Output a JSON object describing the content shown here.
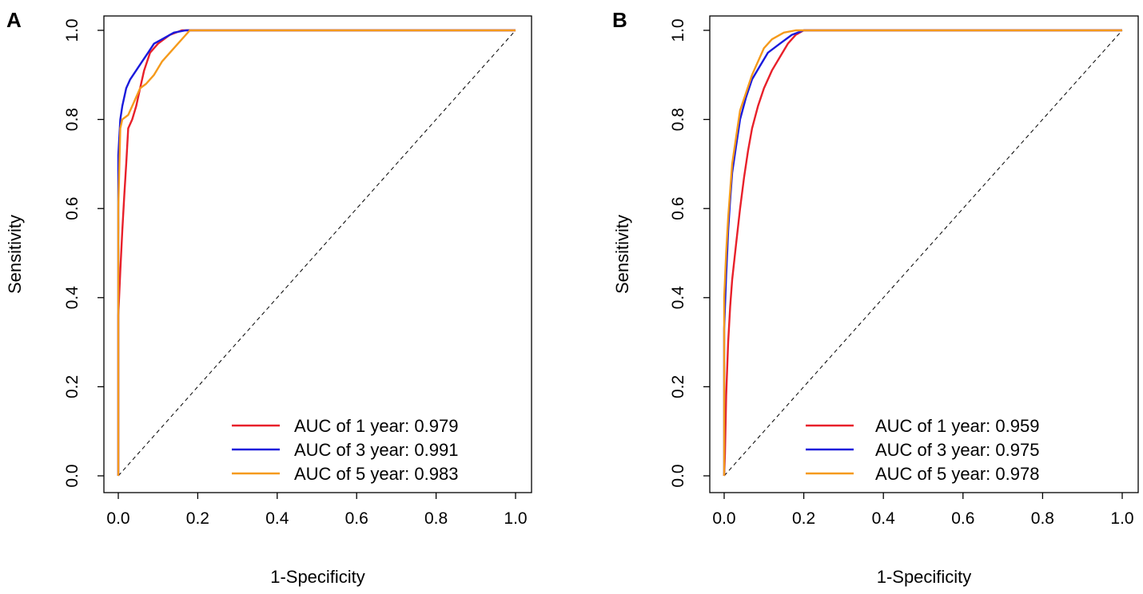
{
  "figure": {
    "panels": [
      "A",
      "B"
    ]
  },
  "colors": {
    "year1": "#e8202a",
    "year3": "#1a1adc",
    "year5": "#f59a1b",
    "diagonal": "#000000",
    "axis": "#000000"
  },
  "chart_data": [
    {
      "panel_label": "A",
      "type": "line",
      "xlabel": "1-Specificity",
      "ylabel": "Sensitivity",
      "xlim": [
        0,
        1
      ],
      "ylim": [
        0,
        1
      ],
      "xticks": [
        "0.0",
        "0.2",
        "0.4",
        "0.6",
        "0.8",
        "1.0"
      ],
      "yticks": [
        "0.0",
        "0.2",
        "0.4",
        "0.6",
        "0.8",
        "1.0"
      ],
      "reference_line": "diagonal",
      "legend_position": "bottom-right",
      "series": [
        {
          "name": "AUC of 1 year: 0.979",
          "color": "#e8202a",
          "points": [
            [
              0,
              0
            ],
            [
              0,
              0.36
            ],
            [
              0.005,
              0.46
            ],
            [
              0.01,
              0.55
            ],
            [
              0.015,
              0.63
            ],
            [
              0.02,
              0.7
            ],
            [
              0.025,
              0.78
            ],
            [
              0.035,
              0.8
            ],
            [
              0.045,
              0.83
            ],
            [
              0.055,
              0.87
            ],
            [
              0.065,
              0.91
            ],
            [
              0.08,
              0.95
            ],
            [
              0.1,
              0.97
            ],
            [
              0.13,
              0.99
            ],
            [
              0.16,
              1
            ],
            [
              1,
              1
            ]
          ]
        },
        {
          "name": "AUC of 3 year: 0.991",
          "color": "#1a1adc",
          "points": [
            [
              0,
              0
            ],
            [
              0,
              0.72
            ],
            [
              0.005,
              0.8
            ],
            [
              0.01,
              0.83
            ],
            [
              0.02,
              0.87
            ],
            [
              0.03,
              0.89
            ],
            [
              0.045,
              0.91
            ],
            [
              0.06,
              0.93
            ],
            [
              0.075,
              0.95
            ],
            [
              0.09,
              0.97
            ],
            [
              0.11,
              0.98
            ],
            [
              0.14,
              0.995
            ],
            [
              0.17,
              1
            ],
            [
              1,
              1
            ]
          ]
        },
        {
          "name": "AUC of 5 year: 0.983",
          "color": "#f59a1b",
          "points": [
            [
              0,
              0
            ],
            [
              0,
              0.6
            ],
            [
              0.005,
              0.78
            ],
            [
              0.01,
              0.8
            ],
            [
              0.025,
              0.81
            ],
            [
              0.04,
              0.84
            ],
            [
              0.055,
              0.87
            ],
            [
              0.07,
              0.88
            ],
            [
              0.09,
              0.9
            ],
            [
              0.11,
              0.93
            ],
            [
              0.13,
              0.95
            ],
            [
              0.15,
              0.97
            ],
            [
              0.18,
              1
            ],
            [
              1,
              1
            ]
          ]
        }
      ]
    },
    {
      "panel_label": "B",
      "type": "line",
      "xlabel": "1-Specificity",
      "ylabel": "Sensitivity",
      "xlim": [
        0,
        1
      ],
      "ylim": [
        0,
        1
      ],
      "xticks": [
        "0.0",
        "0.2",
        "0.4",
        "0.6",
        "0.8",
        "1.0"
      ],
      "yticks": [
        "0.0",
        "0.2",
        "0.4",
        "0.6",
        "0.8",
        "1.0"
      ],
      "reference_line": "diagonal",
      "legend_position": "bottom-right",
      "series": [
        {
          "name": "AUC of 1 year: 0.959",
          "color": "#e8202a",
          "points": [
            [
              0,
              0
            ],
            [
              0.002,
              0.05
            ],
            [
              0.005,
              0.18
            ],
            [
              0.01,
              0.3
            ],
            [
              0.015,
              0.38
            ],
            [
              0.02,
              0.44
            ],
            [
              0.03,
              0.52
            ],
            [
              0.04,
              0.6
            ],
            [
              0.05,
              0.67
            ],
            [
              0.06,
              0.73
            ],
            [
              0.07,
              0.78
            ],
            [
              0.085,
              0.83
            ],
            [
              0.1,
              0.87
            ],
            [
              0.12,
              0.91
            ],
            [
              0.14,
              0.94
            ],
            [
              0.16,
              0.97
            ],
            [
              0.18,
              0.99
            ],
            [
              0.2,
              1
            ],
            [
              1,
              1
            ]
          ]
        },
        {
          "name": "AUC of 3 year: 0.975",
          "color": "#1a1adc",
          "points": [
            [
              0,
              0
            ],
            [
              0,
              0.33
            ],
            [
              0.005,
              0.45
            ],
            [
              0.01,
              0.55
            ],
            [
              0.015,
              0.62
            ],
            [
              0.02,
              0.68
            ],
            [
              0.03,
              0.74
            ],
            [
              0.04,
              0.8
            ],
            [
              0.055,
              0.85
            ],
            [
              0.07,
              0.89
            ],
            [
              0.09,
              0.92
            ],
            [
              0.11,
              0.95
            ],
            [
              0.14,
              0.97
            ],
            [
              0.17,
              0.99
            ],
            [
              0.2,
              1
            ],
            [
              1,
              1
            ]
          ]
        },
        {
          "name": "AUC of 5 year: 0.978",
          "color": "#f59a1b",
          "points": [
            [
              0,
              0
            ],
            [
              0,
              0.4
            ],
            [
              0.005,
              0.5
            ],
            [
              0.01,
              0.58
            ],
            [
              0.015,
              0.64
            ],
            [
              0.02,
              0.7
            ],
            [
              0.03,
              0.76
            ],
            [
              0.04,
              0.82
            ],
            [
              0.055,
              0.86
            ],
            [
              0.07,
              0.9
            ],
            [
              0.085,
              0.93
            ],
            [
              0.1,
              0.96
            ],
            [
              0.12,
              0.98
            ],
            [
              0.15,
              0.995
            ],
            [
              0.18,
              1
            ],
            [
              1,
              1
            ]
          ]
        }
      ]
    }
  ]
}
